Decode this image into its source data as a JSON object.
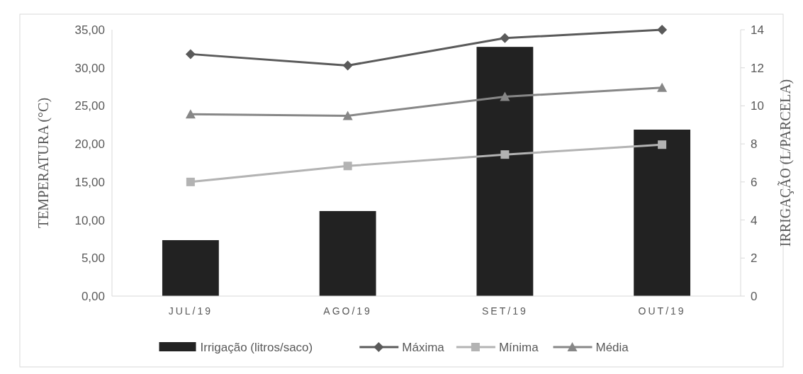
{
  "chart_data": {
    "type": "bar",
    "categories": [
      "JUL/19",
      "AGO/19",
      "SET/19",
      "OUT/19"
    ],
    "ylabel": "TEMPERATURA (°C)",
    "y2label": "IRRIGAÇÃO (L/PARCELA)",
    "ylim": [
      0,
      35
    ],
    "yticks": [
      {
        "value": 0,
        "label": "0,00"
      },
      {
        "value": 5,
        "label": "5,00"
      },
      {
        "value": 10,
        "label": "10,00"
      },
      {
        "value": 15,
        "label": "15,00"
      },
      {
        "value": 20,
        "label": "20,00"
      },
      {
        "value": 25,
        "label": "25,00"
      },
      {
        "value": 30,
        "label": "30,00"
      },
      {
        "value": 35,
        "label": "35,00"
      }
    ],
    "y2lim": [
      0,
      14
    ],
    "y2ticks": [
      0,
      2,
      4,
      6,
      8,
      10,
      12,
      14
    ],
    "legend": "bottom",
    "grid": false,
    "series": [
      {
        "name": "Irrigação (litros/saco)",
        "axis": "y2",
        "color": "#222222",
        "values": [
          2.94,
          4.47,
          13.1,
          8.75
        ]
      },
      {
        "name": "Máxima",
        "type": "line",
        "marker": "diamond",
        "color": "#5a5a5a",
        "values": [
          31.8,
          30.3,
          33.9,
          35.0
        ]
      },
      {
        "name": "Mínima",
        "type": "line",
        "marker": "square",
        "color": "#b3b3b3",
        "values": [
          15.0,
          17.1,
          18.6,
          19.9
        ]
      },
      {
        "name": "Média",
        "type": "line",
        "marker": "triangle",
        "color": "#878787",
        "values": [
          23.9,
          23.7,
          26.2,
          27.4
        ]
      }
    ]
  }
}
